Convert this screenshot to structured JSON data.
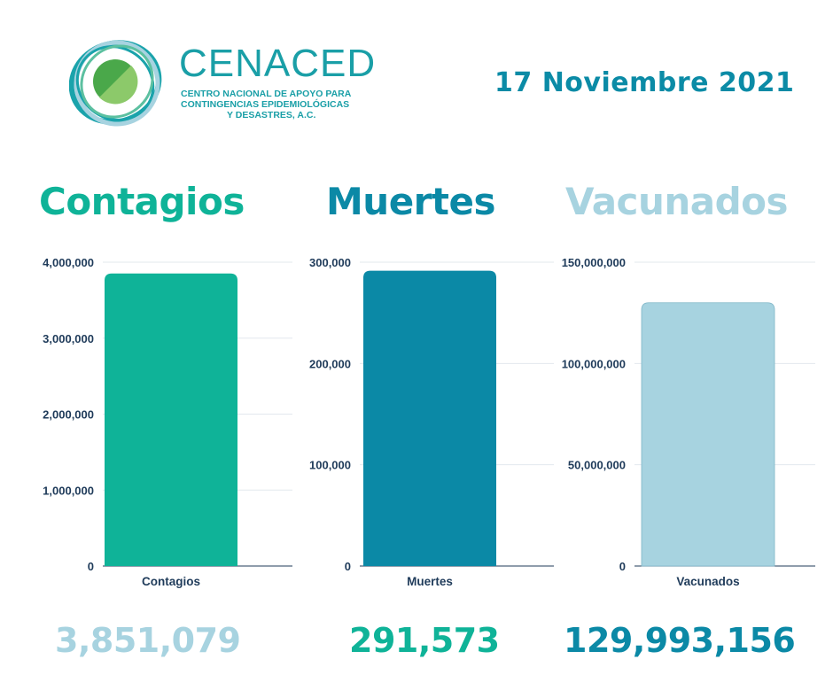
{
  "header": {
    "brand_name": "CENACED",
    "brand_subtitle_lines": [
      "CENTRO NACIONAL DE APOYO PARA",
      "CONTINGENCIAS EPIDEMIOLÓGICAS",
      "Y DESASTRES, A.C."
    ],
    "date": "17 Noviembre 2021",
    "logo_icon": "cenaced-logo-icon"
  },
  "headings": {
    "contagios": "Contagios",
    "muertes": "Muertes",
    "vacunados": "Vacunados"
  },
  "totals": {
    "contagios": "3,851,079",
    "muertes": "291,573",
    "vacunados": "129,993,156"
  },
  "colors": {
    "contagios": "#0fb398",
    "muertes": "#0b89a6",
    "vacunados": "#a7d3e0",
    "axis_text": "#1f3b5a"
  },
  "chart_data": [
    {
      "type": "bar",
      "categories": [
        "Contagios"
      ],
      "values": [
        3851079
      ],
      "ylim": [
        0,
        4000000
      ],
      "yticks": [
        0,
        1000000,
        2000000,
        3000000,
        4000000
      ],
      "ytick_labels": [
        "0",
        "1,000,000",
        "2,000,000",
        "3,000,000",
        "4,000,000"
      ],
      "grid": true,
      "color": "#0fb398"
    },
    {
      "type": "bar",
      "categories": [
        "Muertes"
      ],
      "values": [
        291573
      ],
      "ylim": [
        0,
        300000
      ],
      "yticks": [
        0,
        100000,
        200000,
        300000
      ],
      "ytick_labels": [
        "0",
        "100,000",
        "200,000",
        "300,000"
      ],
      "grid": true,
      "color": "#0b89a6"
    },
    {
      "type": "bar",
      "categories": [
        "Vacunados"
      ],
      "values": [
        129993156
      ],
      "ylim": [
        0,
        150000000
      ],
      "yticks": [
        0,
        50000000,
        100000000,
        150000000
      ],
      "ytick_labels": [
        "0",
        "50,000,000",
        "100,000,000",
        "150,000,000"
      ],
      "grid": true,
      "color": "#a7d3e0"
    }
  ]
}
